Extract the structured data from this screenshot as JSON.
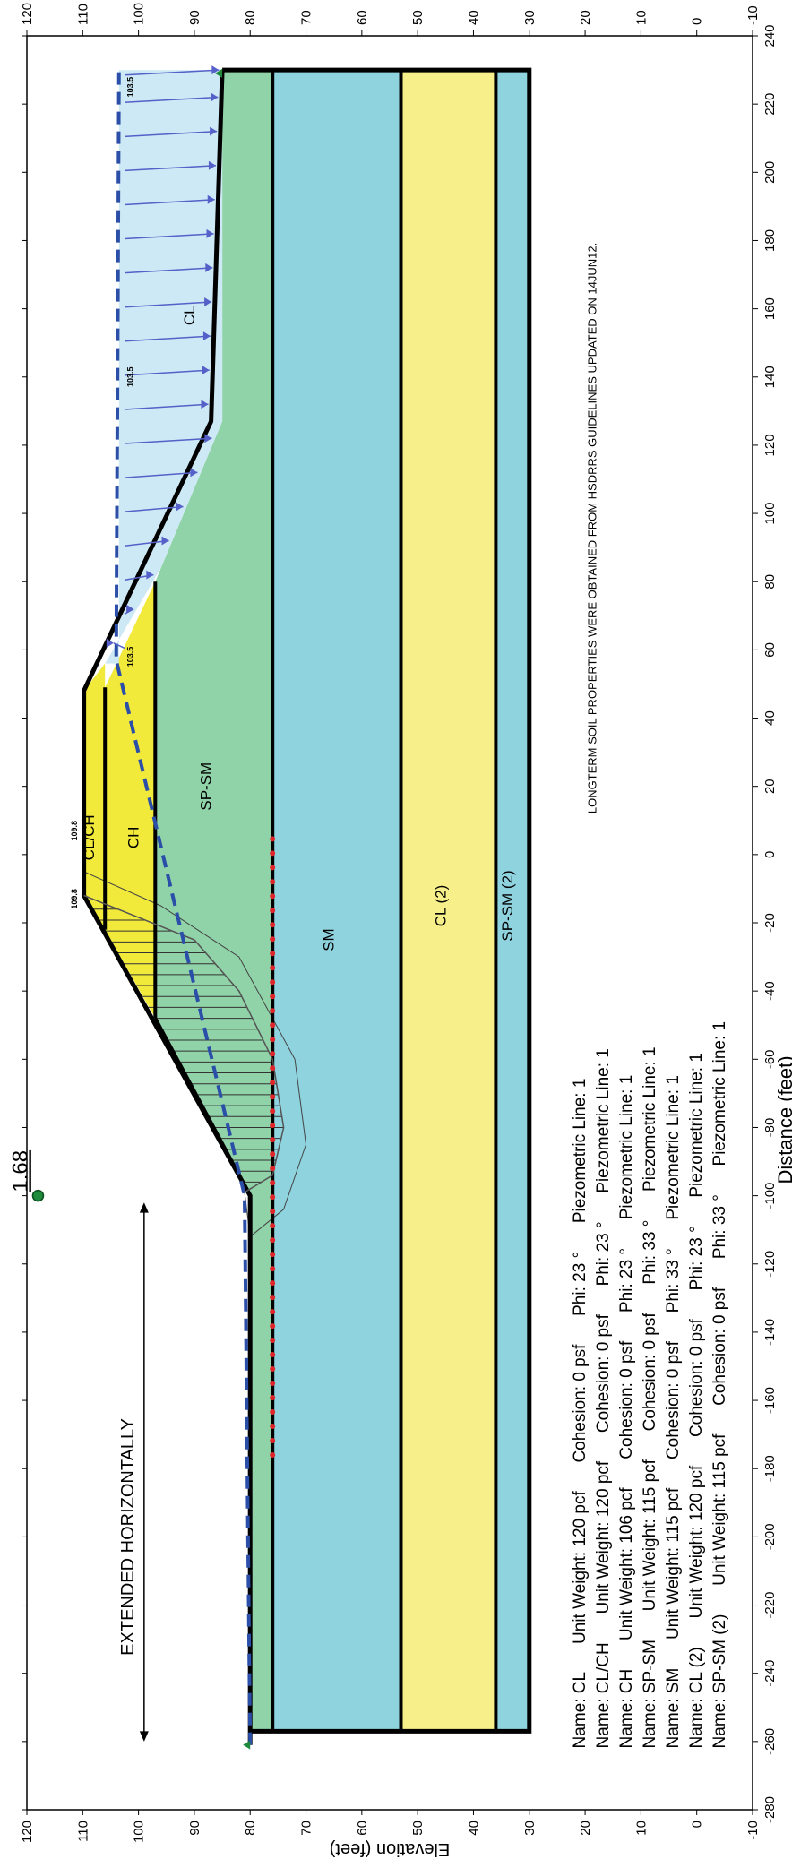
{
  "chart_data": {
    "type": "diagram",
    "xlabel": "Distance (feet)",
    "ylabel": "Elevation (feet)",
    "xlim": [
      -280,
      240
    ],
    "ylim": [
      -10,
      120
    ],
    "x_ticks": [
      -280,
      -260,
      -240,
      -220,
      -200,
      -180,
      -160,
      -140,
      -120,
      -100,
      -80,
      -60,
      -40,
      -20,
      0,
      20,
      40,
      60,
      80,
      100,
      120,
      140,
      160,
      180,
      200,
      220,
      240
    ],
    "y_ticks": [
      -10,
      0,
      10,
      20,
      30,
      40,
      50,
      60,
      70,
      80,
      90,
      100,
      110,
      120
    ],
    "factor_of_safety": {
      "value": "1.68",
      "x": -100,
      "y": 118
    },
    "annotations": {
      "extended": "EXTENDED HORIZONTALLY",
      "note": "LONGTERM SOIL PROPERTIES WERE OBTAINED FROM HSDRRS GUIDELINES UPDATED ON 14JUN12."
    },
    "water_labels": [
      {
        "text": "103.5",
        "x": 225,
        "y": 101
      },
      {
        "text": "103.5",
        "x": 140,
        "y": 101
      },
      {
        "text": "103.5",
        "x": 58,
        "y": 101
      }
    ],
    "elevation_tags": [
      {
        "text": "109.8",
        "x": -13,
        "y": 111
      },
      {
        "text": "109.8",
        "x": 7,
        "y": 111
      }
    ],
    "layer_labels": [
      {
        "text": "CL/CH",
        "x": 5,
        "y": 108
      },
      {
        "text": "CH",
        "x": 5,
        "y": 100
      },
      {
        "text": "SP-SM",
        "x": 20,
        "y": 87
      },
      {
        "text": "SM",
        "x": -25,
        "y": 65
      },
      {
        "text": "CL (2)",
        "x": -15,
        "y": 45
      },
      {
        "text": "SP-SM (2)",
        "x": -15,
        "y": 33
      },
      {
        "text": "CL",
        "x": 158,
        "y": 90
      }
    ],
    "legend": [
      "Name: CL      Unit Weight: 120 pcf      Cohesion: 0 psf      Phi: 23 °      Piezometric Line: 1",
      "Name: CL/CH      Unit Weight: 120 pcf      Cohesion: 0 psf      Phi: 23 °      Piezometric Line: 1",
      "Name: CH      Unit Weight: 106 pcf      Cohesion: 0 psf      Phi: 23 °      Piezometric Line: 1",
      "Name: SP-SM      Unit Weight: 115 pcf      Cohesion: 0 psf      Phi: 33 °      Piezometric Line: 1",
      "Name: SM      Unit Weight: 115 pcf      Cohesion: 0 psf      Phi: 33 °      Piezometric Line: 1",
      "Name: CL (2)      Unit Weight: 120 pcf      Cohesion: 0 psf      Phi: 23 °      Piezometric Line: 1",
      "Name: SP-SM (2)      Unit Weight: 115 pcf      Cohesion: 0 psf      Phi: 33 °      Piezometric Line: 1"
    ],
    "layers": [
      {
        "name": "SP-SM (2)",
        "color": "#8fd3df",
        "points": [
          [
            -257,
            36
          ],
          [
            230,
            36
          ],
          [
            230,
            30
          ],
          [
            -257,
            30
          ]
        ]
      },
      {
        "name": "CL (2)",
        "color": "#f7f08a",
        "points": [
          [
            -257,
            53
          ],
          [
            230,
            53
          ],
          [
            230,
            36
          ],
          [
            -257,
            36
          ]
        ]
      },
      {
        "name": "SM",
        "color": "#8fd3df",
        "points": [
          [
            -257,
            76
          ],
          [
            230,
            76
          ],
          [
            230,
            53
          ],
          [
            -257,
            53
          ]
        ]
      },
      {
        "name": "SP-SM",
        "color": "#90d3a8",
        "points": [
          [
            -257,
            80
          ],
          [
            -100,
            80
          ],
          [
            -48,
            97
          ],
          [
            80,
            97
          ],
          [
            127,
            85
          ],
          [
            230,
            85
          ],
          [
            230,
            76
          ],
          [
            -257,
            76
          ]
        ]
      },
      {
        "name": "CH",
        "color": "#f1ea3a",
        "points": [
          [
            -48,
            97
          ],
          [
            -22,
            106
          ],
          [
            49,
            106
          ],
          [
            80,
            97
          ]
        ]
      },
      {
        "name": "CL/CH",
        "color": "#f1ea3a",
        "points": [
          [
            -22,
            106
          ],
          [
            -12,
            109.8
          ],
          [
            8,
            109.8
          ],
          [
            48,
            109.8
          ],
          [
            56,
            106
          ],
          [
            49,
            106
          ]
        ]
      }
    ],
    "water": {
      "color": "#cde9f5",
      "points": [
        [
          56,
          103.5
        ],
        [
          230,
          103.5
        ],
        [
          230,
          85
        ],
        [
          127,
          85
        ],
        [
          84,
          96
        ],
        [
          56,
          106
        ]
      ]
    },
    "ground_surface": [
      [
        -261,
        80
      ],
      [
        -100,
        80
      ],
      [
        -12,
        109.8
      ],
      [
        48,
        109.8
      ],
      [
        127,
        87
      ],
      [
        230,
        85
      ]
    ],
    "layer_boundaries": [
      [
        [
          -100,
          80
        ],
        [
          -48,
          97
        ]
      ],
      [
        [
          -48,
          97
        ],
        [
          80,
          97
        ]
      ],
      [
        [
          -22,
          106
        ],
        [
          49,
          106
        ]
      ],
      [
        [
          -257,
          76
        ],
        [
          230,
          76
        ]
      ],
      [
        [
          -257,
          53
        ],
        [
          230,
          53
        ]
      ],
      [
        [
          -257,
          36
        ],
        [
          230,
          36
        ]
      ]
    ],
    "piezometric_line": [
      [
        -261,
        80
      ],
      [
        -100,
        81
      ],
      [
        57,
        104
      ],
      [
        230,
        103.5
      ]
    ],
    "slip_surface": [
      [
        -99,
        81
      ],
      [
        -94,
        76
      ],
      [
        -80,
        74
      ],
      [
        -60,
        76
      ],
      [
        -40,
        82
      ],
      [
        -25,
        90
      ],
      [
        -12,
        109.8
      ]
    ],
    "slip_band": [
      [
        -112,
        80
      ],
      [
        -104,
        74
      ],
      [
        -85,
        70
      ],
      [
        -60,
        72
      ],
      [
        -30,
        82
      ],
      [
        -15,
        96
      ],
      [
        -5,
        109.8
      ]
    ],
    "red_points": {
      "y": 76,
      "from": -176,
      "to": 8,
      "step": 4.2
    },
    "arrows": {
      "y": 103.5,
      "xs": [
        62,
        72,
        82,
        92,
        102,
        112,
        122,
        132,
        142,
        152,
        162,
        172,
        182,
        192,
        202,
        212,
        222,
        230
      ]
    }
  }
}
